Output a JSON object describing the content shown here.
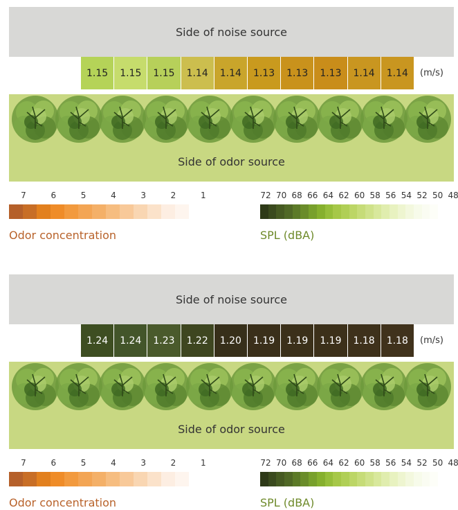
{
  "panels": [
    {
      "noise_label": "Side of noise source",
      "odor_label": "Side of odor source",
      "unit": "(m/s)",
      "speeds": [
        "1.15",
        "1.15",
        "1.15",
        "1.14",
        "1.14",
        "1.13",
        "1.13",
        "1.13",
        "1.14",
        "1.14"
      ],
      "speed_colors": [
        "#b5d358",
        "#c6dc6c",
        "#b7d05a",
        "#ccbe4e",
        "#c9a52b",
        "#c99a1e",
        "#c9921c",
        "#c98d1a",
        "#c99620",
        "#c99620"
      ],
      "odor_legend": {
        "ticks": [
          "7",
          "6",
          "5",
          "4",
          "3",
          "2",
          "1"
        ],
        "title": "Odor concentration"
      },
      "spl_legend": {
        "ticks": [
          "72",
          "70",
          "68",
          "66",
          "64",
          "62",
          "60",
          "58",
          "56",
          "54",
          "52",
          "50",
          "48"
        ],
        "title": "SPL (dBA)"
      }
    },
    {
      "noise_label": "Side of noise source",
      "odor_label": "Side of odor source",
      "unit": "(m/s)",
      "speeds": [
        "1.24",
        "1.24",
        "1.23",
        "1.22",
        "1.20",
        "1.19",
        "1.19",
        "1.19",
        "1.18",
        "1.18"
      ],
      "speed_colors": [
        "#3e4e22",
        "#43552a",
        "#4a5a2c",
        "#3e4620",
        "#372f1a",
        "#3a2f1a",
        "#3b301a",
        "#3c301a",
        "#3e311b",
        "#40321c"
      ],
      "odor_legend": {
        "ticks": [
          "7",
          "6",
          "5",
          "4",
          "3",
          "2",
          "1"
        ],
        "title": "Odor concentration"
      },
      "spl_legend": {
        "ticks": [
          "72",
          "70",
          "68",
          "66",
          "64",
          "62",
          "60",
          "58",
          "56",
          "54",
          "52",
          "50",
          "48"
        ],
        "title": "SPL (dBA)"
      }
    }
  ],
  "odor_scale_colors": [
    "#b5602a",
    "#c86e26",
    "#e2801e",
    "#ef8c28",
    "#f29a3e",
    "#f3a554",
    "#f4b068",
    "#f6bd80",
    "#f8c999",
    "#f9d6b2",
    "#fbe2ca",
    "#fdeee2",
    "#fef5ee",
    "#ffffff"
  ],
  "spl_scale_colors": [
    "#2e3a18",
    "#3a4a1e",
    "#465a22",
    "#506826",
    "#5c7a28",
    "#6a8c2a",
    "#78a02c",
    "#86b02e",
    "#96be3a",
    "#a6c848",
    "#b0cf56",
    "#bcd666",
    "#c6dc78",
    "#cfe28a",
    "#d8e89c",
    "#e0edae",
    "#e8f2c0",
    "#eef5d0",
    "#f3f8de",
    "#f7fbea",
    "#fafcf2",
    "#fdfef8",
    "#ffffff",
    "#ffffff"
  ]
}
